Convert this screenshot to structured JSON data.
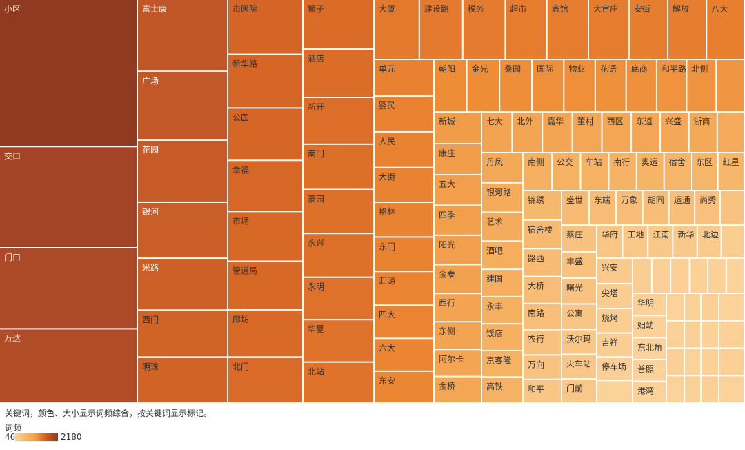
{
  "chart_data": {
    "type": "treemap",
    "caption": "关键词，颜色、大小显示词频综合，按关键词显示标记。",
    "legend": {
      "title": "词频",
      "min": 46,
      "max": 2180
    },
    "columns": [
      {
        "w": 200,
        "items": [
          [
            "小区",
            2180
          ],
          [
            "交口",
            1500
          ],
          [
            "门口",
            1200
          ],
          [
            "万达",
            1100
          ]
        ]
      },
      {
        "w": 131,
        "items": [
          [
            "富士康",
            720
          ],
          [
            "广场",
            690
          ],
          [
            "花园",
            620
          ],
          [
            "银河",
            560
          ],
          [
            "米路",
            520
          ],
          [
            "西门",
            470
          ],
          [
            "明珠",
            460
          ]
        ]
      },
      {
        "w": 109,
        "items": [
          [
            "市医院",
            430
          ],
          [
            "新华路",
            420
          ],
          [
            "公园",
            410
          ],
          [
            "幸福",
            400
          ],
          [
            "市场",
            390
          ],
          [
            "管道局",
            380
          ],
          [
            "廊坊",
            370
          ],
          [
            "北门",
            360
          ]
        ]
      },
      {
        "w": 103,
        "items": [
          [
            "狮子",
            340
          ],
          [
            "酒店",
            330
          ],
          [
            "新开",
            320
          ],
          [
            "南门",
            310
          ],
          [
            "豪园",
            300
          ],
          [
            "永兴",
            300
          ],
          [
            "永明",
            290
          ],
          [
            "华夏",
            290
          ],
          [
            "北站",
            280
          ]
        ]
      }
    ],
    "rest": {
      "top_row": {
        "h": 87,
        "items": [
          [
            "大厦",
            240
          ],
          [
            "建设路",
            230
          ],
          [
            "税务",
            225
          ],
          [
            "超市",
            220
          ],
          [
            "宾馆",
            220
          ],
          [
            "大官庄",
            215
          ],
          [
            "安街",
            205
          ],
          [
            "解放",
            205
          ],
          [
            "八大",
            200
          ]
        ]
      },
      "col5": {
        "w": 87,
        "items": [
          [
            "单元",
            190
          ],
          [
            "婴民",
            185
          ],
          [
            "人民",
            185
          ],
          [
            "大街",
            180
          ],
          [
            "格林",
            180
          ],
          [
            "东门",
            178
          ],
          [
            "汇源",
            175
          ],
          [
            "四大",
            172
          ],
          [
            "六大",
            170
          ],
          [
            "东安",
            165
          ]
        ]
      },
      "row2": {
        "h": 76,
        "items": [
          [
            "朝阳",
            140
          ],
          [
            "金光",
            140
          ],
          [
            "桑园",
            138
          ],
          [
            "国际",
            136
          ],
          [
            "物业",
            134
          ],
          [
            "花语",
            132
          ],
          [
            "底商",
            130
          ],
          [
            "和平路",
            128
          ],
          [
            "北侧",
            126
          ],
          [
            "",
            120
          ]
        ]
      },
      "col6": {
        "w": 69,
        "items": [
          [
            "新城",
            110
          ],
          [
            "康庄",
            108
          ],
          [
            "五大",
            106
          ],
          [
            "四季",
            104
          ],
          [
            "阳光",
            102
          ],
          [
            "金泰",
            100
          ],
          [
            "西行",
            98
          ],
          [
            "东侧",
            96
          ],
          [
            "阿尔卡",
            94
          ],
          [
            "金桥",
            92
          ]
        ]
      },
      "row3": {
        "h": 59,
        "items": [
          [
            "七大",
            96
          ],
          [
            "北外",
            95
          ],
          [
            "嘉华",
            94
          ],
          [
            "董村",
            93
          ],
          [
            "西区",
            92
          ],
          [
            "东道",
            91
          ],
          [
            "兴盛",
            90
          ],
          [
            "浙商",
            89
          ],
          [
            "",
            85
          ]
        ]
      },
      "col7": {
        "w": 60,
        "items": [
          [
            "丹凤",
            88
          ],
          [
            "银河路",
            86
          ],
          [
            "艺术",
            84
          ],
          [
            "酒吧",
            82
          ],
          [
            "建国",
            80
          ],
          [
            "永丰",
            79
          ],
          [
            "饭店",
            78
          ],
          [
            "京客隆",
            77
          ],
          [
            "高铁",
            76
          ]
        ]
      },
      "row4": {
        "h": 55,
        "items": [
          [
            "南侧",
            78
          ],
          [
            "公交",
            77
          ],
          [
            "车站",
            76
          ],
          [
            "南行",
            75
          ],
          [
            "奥运",
            74
          ],
          [
            "宿舍",
            73
          ],
          [
            "东区",
            72
          ],
          [
            "红星",
            71
          ]
        ]
      },
      "col8": {
        "w": 56,
        "items": [
          [
            "锦绣",
            70
          ],
          [
            "宿舍楼",
            68
          ],
          [
            "路西",
            66
          ],
          [
            "大桥",
            64
          ],
          [
            "南路",
            62
          ],
          [
            "农行",
            60
          ],
          [
            "万向",
            58
          ],
          [
            "和平",
            56
          ]
        ]
      },
      "row5": {
        "h": 50,
        "items": [
          [
            "盛世",
            66
          ],
          [
            "东端",
            65
          ],
          [
            "万象",
            64
          ],
          [
            "胡同",
            63
          ],
          [
            "运通",
            62
          ],
          [
            "尚秀",
            61
          ],
          [
            "",
            58
          ]
        ]
      },
      "col9": {
        "w": 51,
        "items": [
          [
            "蔡庄",
            60
          ],
          [
            "丰盛",
            59
          ],
          [
            "曙光",
            58
          ],
          [
            "公寓",
            57
          ],
          [
            "沃尔玛",
            56
          ],
          [
            "火车站",
            55
          ],
          [
            "门前",
            54
          ]
        ]
      },
      "row6": {
        "h": 48,
        "items": [
          [
            "华府",
            56
          ],
          [
            "工地",
            55
          ],
          [
            "江南",
            54
          ],
          [
            "新华",
            53
          ],
          [
            "北边",
            52
          ],
          [
            "",
            50
          ]
        ]
      },
      "col10": {
        "w": 52,
        "items": [
          [
            "兴安",
            52
          ],
          [
            "尖塔",
            51
          ],
          [
            "烧烤",
            50
          ],
          [
            "吉祥",
            49
          ],
          [
            "停车场",
            48
          ],
          [
            "",
            46
          ]
        ]
      },
      "row7": {
        "h": 51,
        "items": [
          [
            "",
            49
          ],
          [
            "",
            48
          ],
          [
            "",
            48
          ],
          [
            "",
            47
          ],
          [
            "",
            47
          ],
          [
            "",
            46
          ]
        ]
      },
      "col11": {
        "w": 49,
        "items": [
          [
            "华明",
            47
          ],
          [
            "妇幼",
            47
          ],
          [
            "东北角",
            46
          ],
          [
            "普照",
            46
          ],
          [
            "港湾",
            46
          ]
        ]
      },
      "grid": {
        "rows": 4,
        "cols": [
          26,
          24,
          26,
          24
        ]
      }
    }
  }
}
